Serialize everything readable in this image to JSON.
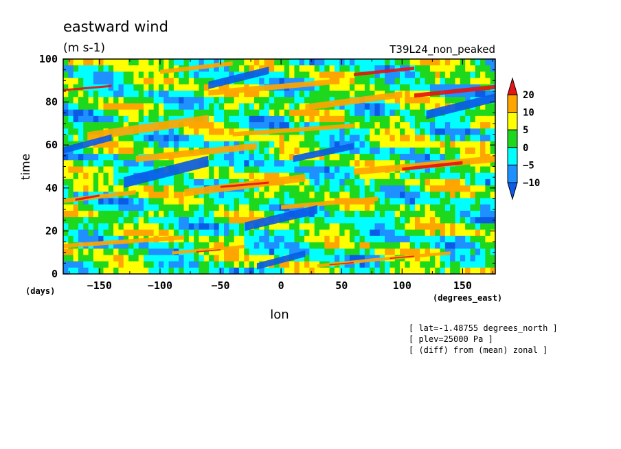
{
  "chart_data": {
    "type": "heatmap",
    "title": "eastward wind",
    "units": "(m s-1)",
    "run_label": "T39L24_non_peaked",
    "xlabel": "lon",
    "x_units": "(degrees_east)",
    "ylabel": "time",
    "y_units": "(days)",
    "xlim": [
      -180,
      177
    ],
    "ylim": [
      0,
      100
    ],
    "x_ticks": [
      -150,
      -100,
      -50,
      0,
      50,
      100,
      150
    ],
    "y_ticks": [
      0,
      20,
      40,
      60,
      80,
      100
    ],
    "colorbar": {
      "levels": [
        -10,
        -5,
        0,
        5,
        10,
        20
      ],
      "labels": [
        "20",
        "10",
        "5",
        "0",
        "-5",
        "-10"
      ],
      "colors": [
        "#0b5be6",
        "#1e90ff",
        "#00ffff",
        "#1ed81e",
        "#ffff00",
        "#ffa500",
        "#e61414"
      ],
      "extend": "both"
    },
    "notes": [
      "[ lat=-1.48755 degrees_north ]",
      "[ plev=25000 Pa ]",
      "[ (diff) from (mean) zonal ]"
    ],
    "bands": [
      {
        "x0": -180,
        "y0": 85,
        "x1": -140,
        "y1": 87,
        "level": "20"
      },
      {
        "x0": -100,
        "y0": 93,
        "x1": -40,
        "y1": 97,
        "level": "10"
      },
      {
        "x0": 60,
        "y0": 92,
        "x1": 110,
        "y1": 95,
        "level": "20"
      },
      {
        "x0": 110,
        "y0": 82,
        "x1": 177,
        "y1": 86,
        "level": "20"
      },
      {
        "x0": -60,
        "y0": 83,
        "x1": 40,
        "y1": 88,
        "level": "10"
      },
      {
        "x0": 20,
        "y0": 76,
        "x1": 100,
        "y1": 82,
        "level": "10"
      },
      {
        "x0": -160,
        "y0": 62,
        "x1": -60,
        "y1": 70,
        "level": "10"
      },
      {
        "x0": -40,
        "y0": 64,
        "x1": 60,
        "y1": 68,
        "level": "10"
      },
      {
        "x0": -120,
        "y0": 52,
        "x1": -20,
        "y1": 58,
        "level": "10"
      },
      {
        "x0": 60,
        "y0": 46,
        "x1": 177,
        "y1": 52,
        "level": "10"
      },
      {
        "x0": 100,
        "y0": 48,
        "x1": 150,
        "y1": 51,
        "level": "20"
      },
      {
        "x0": -80,
        "y0": 36,
        "x1": 20,
        "y1": 43,
        "level": "10"
      },
      {
        "x0": -50,
        "y0": 40,
        "x1": -10,
        "y1": 42,
        "level": "20"
      },
      {
        "x0": -180,
        "y0": 33,
        "x1": -120,
        "y1": 37,
        "level": "10"
      },
      {
        "x0": -170,
        "y0": 34,
        "x1": -150,
        "y1": 36,
        "level": "20"
      },
      {
        "x0": 0,
        "y0": 30,
        "x1": 80,
        "y1": 34,
        "level": "10"
      },
      {
        "x0": -180,
        "y0": 12,
        "x1": -80,
        "y1": 16,
        "level": "10"
      },
      {
        "x0": -90,
        "y0": 9,
        "x1": -30,
        "y1": 12,
        "level": "10"
      },
      {
        "x0": -70,
        "y0": 10,
        "x1": -50,
        "y1": 11,
        "level": "20"
      },
      {
        "x0": 30,
        "y0": 3,
        "x1": 80,
        "y1": 6,
        "level": "10"
      },
      {
        "x0": 40,
        "y0": 4,
        "x1": 60,
        "y1": 5,
        "level": "20"
      },
      {
        "x0": 80,
        "y0": 6,
        "x1": 140,
        "y1": 9,
        "level": "10"
      },
      {
        "x0": 90,
        "y0": 7,
        "x1": 110,
        "y1": 8,
        "level": "20"
      },
      {
        "x0": -130,
        "y0": 40,
        "x1": -60,
        "y1": 50,
        "level": "-10"
      },
      {
        "x0": -60,
        "y0": 86,
        "x1": -10,
        "y1": 93,
        "level": "-10"
      },
      {
        "x0": 120,
        "y0": 72,
        "x1": 177,
        "y1": 80,
        "level": "-10"
      },
      {
        "x0": -30,
        "y0": 20,
        "x1": 30,
        "y1": 28,
        "level": "-10"
      },
      {
        "x0": -180,
        "y0": 56,
        "x1": -140,
        "y1": 62,
        "level": "-10"
      },
      {
        "x0": -20,
        "y0": 2,
        "x1": 20,
        "y1": 8,
        "level": "-10"
      },
      {
        "x0": 10,
        "y0": 52,
        "x1": 60,
        "y1": 58,
        "level": "-10"
      }
    ]
  }
}
